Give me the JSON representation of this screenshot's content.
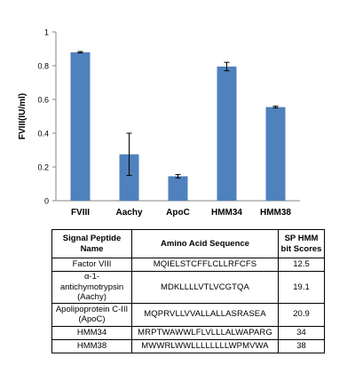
{
  "chart_data": {
    "type": "bar",
    "categories": [
      "FVIII",
      "Aachy",
      "ApoC",
      "HMM34",
      "HMM38"
    ],
    "values": [
      0.88,
      0.275,
      0.145,
      0.795,
      0.555
    ],
    "errors": [
      0.004,
      0.125,
      0.01,
      0.025,
      0.005
    ],
    "title": "",
    "xlabel": "",
    "ylabel": "FVIII(IU/ml)",
    "ylim": [
      0,
      1
    ],
    "yticks": [
      "0",
      "0.2",
      "0.4",
      "0.6",
      "0.8",
      "1"
    ],
    "grid": false,
    "bar_color": "#4f81bd"
  },
  "table": {
    "headers": [
      "Signal Peptide Name",
      "Amino Acid Sequence",
      "SP HMM bit Scores"
    ],
    "rows": [
      {
        "name": "Factor VIII",
        "seq": "MQIELSTCFFLCLLRFCFS",
        "score": "12.5"
      },
      {
        "name": "α-1-antichymotrypsin (Aachy)",
        "seq": "MDKLLLLVTLVCGTQA",
        "score": "19.1"
      },
      {
        "name": "Apolipoprotein C-III (ApoC)",
        "seq": "MQPRVLLVVALLALLASRASEA",
        "score": "20.9"
      },
      {
        "name": "HMM34",
        "seq": "MRPTWAWWLFLVLLLALWAPARG",
        "score": "34"
      },
      {
        "name": "HMM38",
        "seq": "MWWRLWWLLLLLLLLWPMVWA",
        "score": "38"
      }
    ]
  }
}
